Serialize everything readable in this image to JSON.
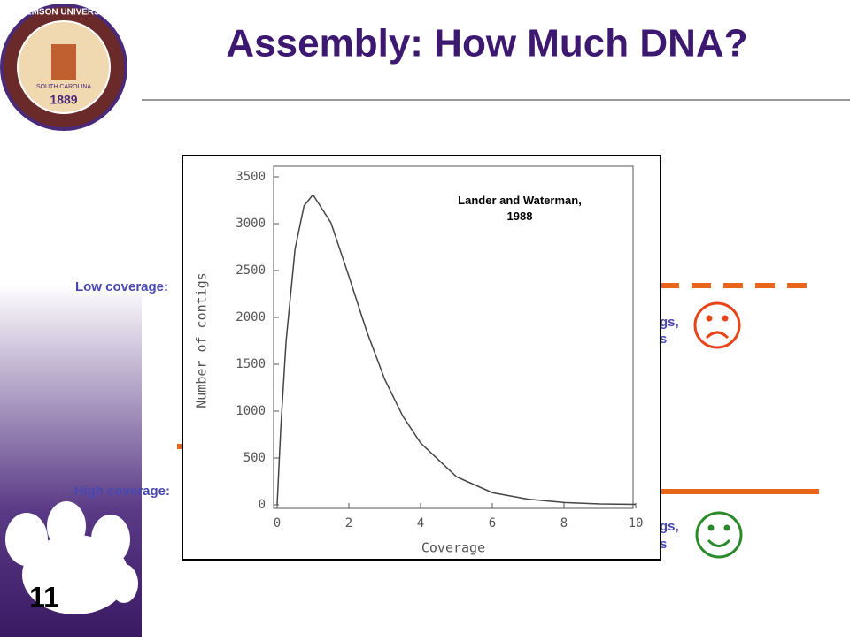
{
  "slide": {
    "title": "Assembly: How Much DNA?",
    "logo": {
      "name": "CLEMSON UNIVERSITY",
      "state": "SOUTH CAROLINA",
      "year": "1889"
    },
    "low_label": "Low coverage:",
    "high_label": "High coverage:",
    "low_note": [
      "gs,",
      "s"
    ],
    "high_note": [
      "gs,",
      "s"
    ],
    "page_number": "11"
  },
  "chart_data": {
    "type": "line",
    "annotation": "Lander and Waterman, 1988",
    "x_label": "Coverage",
    "y_label": "Number of contigs",
    "xlim": [
      0,
      10
    ],
    "ylim": [
      0,
      3500
    ],
    "xticks": [
      0,
      2,
      4,
      6,
      8,
      10
    ],
    "yticks": [
      0,
      500,
      1000,
      1500,
      2000,
      2500,
      3000,
      3500
    ],
    "series": [
      {
        "color": "#444444",
        "x": [
          0,
          0.1,
          0.25,
          0.5,
          0.75,
          1,
          1.5,
          2,
          2.5,
          3,
          3.5,
          4,
          5,
          6,
          7,
          8,
          9,
          10
        ],
        "values": [
          0,
          810,
          1750,
          2730,
          3190,
          3310,
          3010,
          2440,
          1850,
          1340,
          950,
          660,
          300,
          130,
          60,
          25,
          10,
          5
        ]
      }
    ]
  }
}
